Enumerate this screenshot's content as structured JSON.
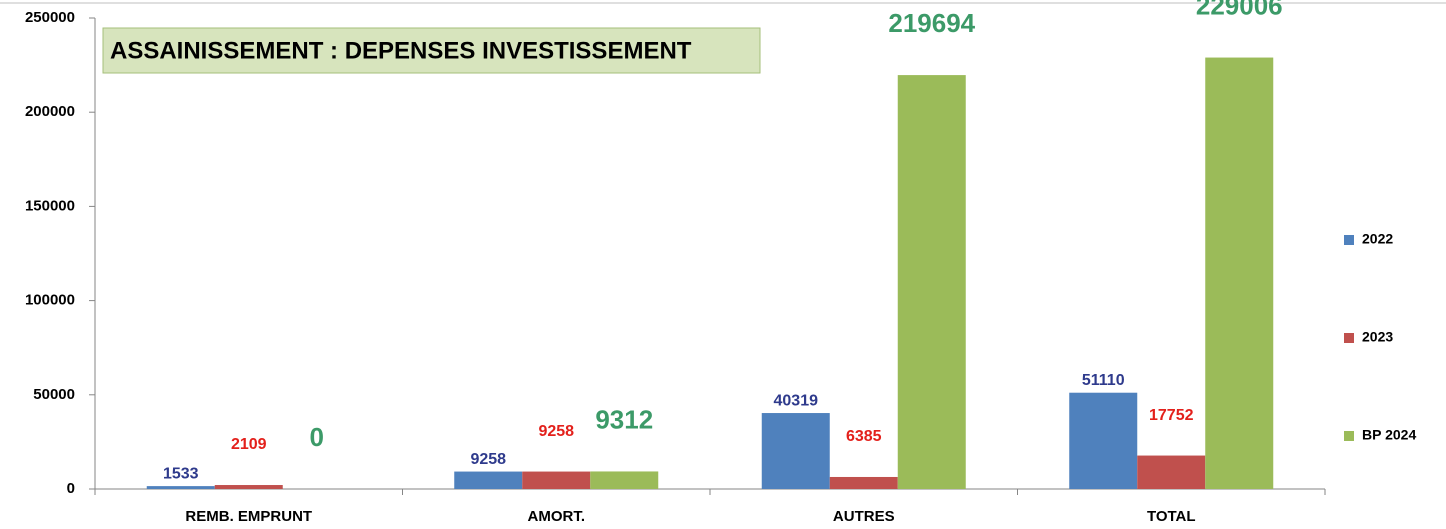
{
  "chart_data": {
    "type": "bar",
    "title": "ASSAINISSEMENT : DEPENSES INVESTISSEMENT",
    "categories": [
      "REMB. EMPRUNT",
      "AMORT.",
      "AUTRES",
      "TOTAL"
    ],
    "series": [
      {
        "name": "2022",
        "color": "#4f81bd",
        "label_color": "#2e3a8c",
        "values": [
          1533,
          9258,
          40319,
          51110
        ]
      },
      {
        "name": "2023",
        "color": "#c0504d",
        "label_color": "#e3201b",
        "values": [
          2109,
          9258,
          6385,
          17752
        ]
      },
      {
        "name": "BP 2024",
        "color": "#9bbb59",
        "label_color": "#3c9a68",
        "values": [
          0,
          9312,
          219694,
          229006
        ]
      }
    ],
    "ylim": [
      0,
      250000
    ],
    "yticks": [
      0,
      50000,
      100000,
      150000,
      200000,
      250000
    ],
    "grid": false,
    "legend_position": "right"
  }
}
